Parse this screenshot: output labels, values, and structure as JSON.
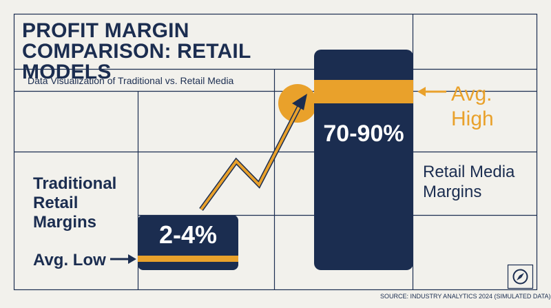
{
  "colors": {
    "background": "#f2f1ec",
    "navy": "#1b2d50",
    "accent": "#e9a12b",
    "grid": "#1b2d50"
  },
  "header": {
    "title": "PROFIT MARGIN COMPARISON: RETAIL MODELS",
    "subtitle": "Data Visualization of Traditional vs. Retail Media"
  },
  "chart_data": {
    "type": "bar",
    "title": "PROFIT MARGIN COMPARISON: RETAIL MODELS",
    "subtitle": "Data Visualization of Traditional vs. Retail Media",
    "categories": [
      "Traditional Retail Margins",
      "Retail Media Margins"
    ],
    "series": [
      {
        "values": [
          3,
          80
        ],
        "ranges": [
          [
            2,
            4
          ],
          [
            70,
            90
          ]
        ],
        "value_labels": [
          "2-4%",
          "70-90%"
        ]
      }
    ],
    "annotations": [
      {
        "text": "Avg. Low",
        "target": "Traditional Retail Margins",
        "marker": "arrow-right"
      },
      {
        "text": "Avg. High",
        "target": "Retail Media Margins",
        "marker": "arrow-left"
      }
    ],
    "trend_arrow": {
      "from": "Traditional Retail Margins",
      "to": "Retail Media Margins",
      "shape": "zigzag-up"
    },
    "xlabel": "",
    "ylabel": "",
    "grid": true,
    "legend": "none"
  },
  "labels": {
    "traditional": "Traditional Retail Margins",
    "retail_media": "Retail Media Margins",
    "avg_low": "Avg. Low",
    "avg_high": "Avg. High"
  },
  "footer": {
    "source": "SOURCE: INDUSTRY ANALYTICS 2024 (SIMULATED DATA)",
    "icon": "compass-icon"
  }
}
